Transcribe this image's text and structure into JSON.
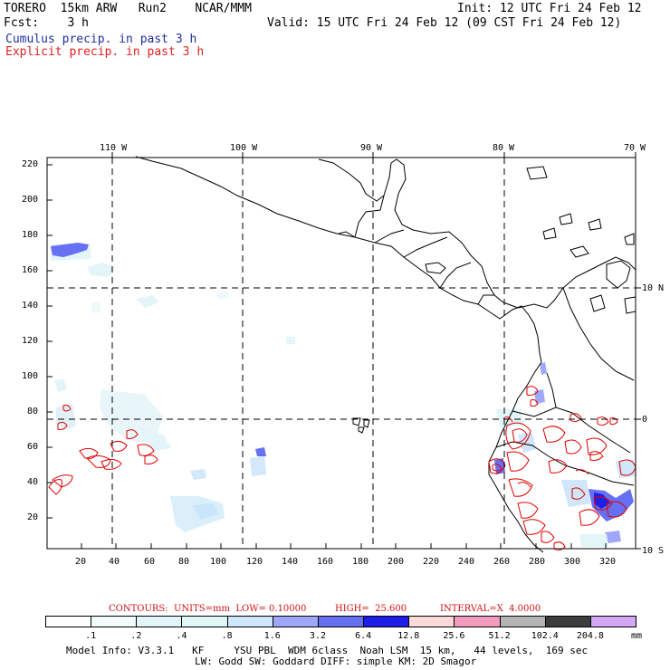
{
  "header": {
    "model": "TORERO  15km ARW   Run2    NCAR/MMM",
    "init": "Init: 12 UTC Fri 24 Feb 12",
    "fcst": "Fcst:    3 h",
    "valid": "Valid: 15 UTC Fri 24 Feb 12 (09 CST Fri 24 Feb 12)",
    "cumulus": "Cumulus precip. in past 3 h",
    "explicit": "Explicit precip. in past 3 h"
  },
  "colors": {
    "cumulus_text": "#1f2f9f",
    "explicit_text": "#e02020",
    "coast": "#000000",
    "explicit_contour": "#e00000"
  },
  "map": {
    "lon_labels": [
      "110 W",
      "100 W",
      "90 W",
      "80 W",
      "70 W"
    ],
    "lat_labels": [
      "10 N",
      "0",
      "10 S"
    ],
    "y_ticks": [
      "220",
      "200",
      "180",
      "160",
      "140",
      "120",
      "100",
      "80",
      "60",
      "40",
      "20"
    ],
    "x_ticks": [
      "20",
      "40",
      "60",
      "80",
      "100",
      "120",
      "140",
      "160",
      "180",
      "200",
      "220",
      "240",
      "260",
      "280",
      "300",
      "320"
    ]
  },
  "contours_info": {
    "label": "CONTOURS:  UNITS=mm  LOW= 0.10000",
    "high": "HIGH=  25.600",
    "interval": "INTERVAL=X  4.0000"
  },
  "colorbar": {
    "colors": [
      "#ffffff",
      "#f2fbfb",
      "#e2f5f9",
      "#dff8f6",
      "#cfe6fb",
      "#9fa8f8",
      "#6670f2",
      "#1e1ee6",
      "#fad9d9",
      "#f29bbd",
      "#b4b4b4",
      "#3c3c3c",
      "#d4a7f4"
    ],
    "labels": [
      ".1",
      ".2",
      ".4",
      ".8",
      "1.6",
      "3.2",
      "6.4",
      "12.8",
      "25.6",
      "51.2",
      "102.4",
      "204.8"
    ],
    "unit": "mm"
  },
  "footer": {
    "line1": "Model Info: V3.3.1   KF     YSU PBL  WDM 6class  Noah LSM  15 km,   44 levels,  169 sec",
    "line2": "LW: Godd SW: Goddard DIFF: simple KM: 2D Smagor"
  }
}
